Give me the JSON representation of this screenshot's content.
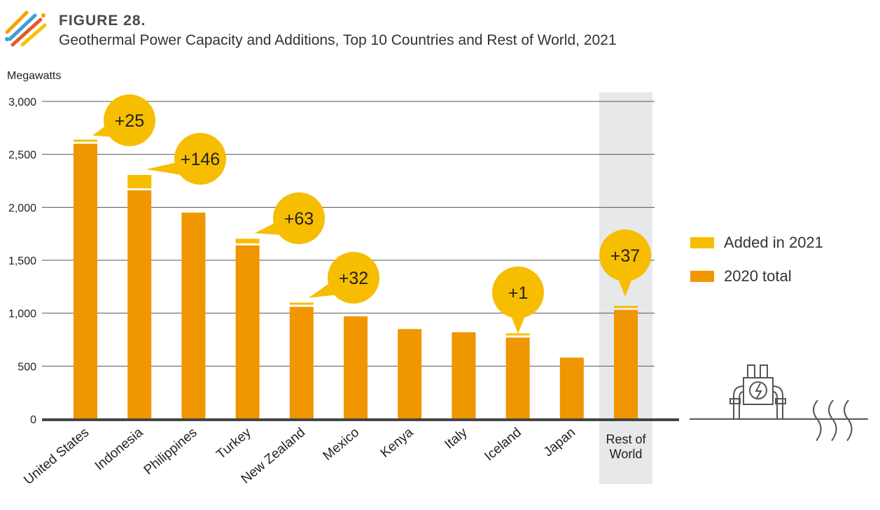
{
  "header": {
    "figure_label": "FIGURE 28.",
    "title": "Geothermal Power Capacity and Additions, Top 10 Countries and Rest of World, 2021"
  },
  "colors": {
    "added": "#f7bd00",
    "base": "#f09600",
    "grid": "#555555",
    "highlight_band": "#e6e8ea",
    "logo": [
      "#f4a300",
      "#3b9fd8",
      "#e05a2b",
      "#f4c400"
    ]
  },
  "chart_data": {
    "type": "bar",
    "stacked": true,
    "ylabel": "Megawatts",
    "ylim": [
      0,
      3000
    ],
    "yticks": [
      0,
      500,
      1000,
      1500,
      2000,
      2500,
      3000
    ],
    "ytick_labels": [
      "0",
      "500",
      "1,000",
      "1,500",
      "2,000",
      "2,500",
      "3,000"
    ],
    "categories": [
      "United States",
      "Indonesia",
      "Philippines",
      "Turkey",
      "New Zealand",
      "Mexico",
      "Kenya",
      "Italy",
      "Iceland",
      "Japan",
      "Rest of World"
    ],
    "category_lines": [
      [
        "United States"
      ],
      [
        "Indonesia"
      ],
      [
        "Philippines"
      ],
      [
        "Turkey"
      ],
      [
        "New Zealand"
      ],
      [
        "Mexico"
      ],
      [
        "Kenya"
      ],
      [
        "Italy"
      ],
      [
        "Iceland"
      ],
      [
        "Japan"
      ],
      [
        "Rest of",
        "World"
      ]
    ],
    "series": [
      {
        "name": "2020 total",
        "values": [
          2600,
          2160,
          1950,
          1640,
          1060,
          970,
          850,
          820,
          770,
          580,
          1030
        ]
      },
      {
        "name": "Added in 2021",
        "values": [
          25,
          146,
          0,
          63,
          32,
          0,
          0,
          0,
          1,
          0,
          37
        ]
      }
    ],
    "annotations": [
      {
        "index": 0,
        "label": "+25"
      },
      {
        "index": 1,
        "label": "+146"
      },
      {
        "index": 3,
        "label": "+63"
      },
      {
        "index": 4,
        "label": "+32"
      },
      {
        "index": 8,
        "label": "+1"
      },
      {
        "index": 10,
        "label": "+37"
      }
    ],
    "highlight_category": "Rest of World",
    "legend": [
      "Added in 2021",
      "2020 total"
    ],
    "legend_position": "right"
  }
}
